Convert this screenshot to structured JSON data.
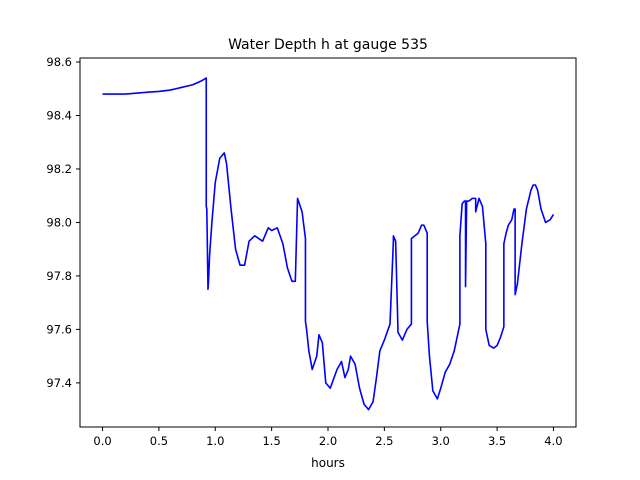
{
  "chart_data": {
    "type": "line",
    "title": "Water Depth h at gauge 535",
    "xlabel": "hours",
    "ylabel": "",
    "xlim": [
      -0.2,
      4.2
    ],
    "ylim": [
      97.235,
      98.615
    ],
    "xticks": [
      0.0,
      0.5,
      1.0,
      1.5,
      2.0,
      2.5,
      3.0,
      3.5,
      4.0
    ],
    "xtick_labels": [
      "0.0",
      "0.5",
      "1.0",
      "1.5",
      "2.0",
      "2.5",
      "3.0",
      "3.5",
      "4.0"
    ],
    "yticks": [
      97.4,
      97.6,
      97.8,
      98.0,
      98.2,
      98.4,
      98.6
    ],
    "ytick_labels": [
      "97.4",
      "97.6",
      "97.8",
      "98.0",
      "98.2",
      "98.4",
      "98.6"
    ],
    "grid": false,
    "series": [
      {
        "color": "#0000ff",
        "x": [
          0.0,
          0.2,
          0.4,
          0.5,
          0.6,
          0.65,
          0.7,
          0.8,
          0.88,
          0.92,
          0.92,
          0.925,
          0.935,
          0.935,
          0.94,
          0.95,
          0.97,
          1.0,
          1.04,
          1.08,
          1.1,
          1.14,
          1.18,
          1.22,
          1.26,
          1.3,
          1.35,
          1.42,
          1.47,
          1.5,
          1.55,
          1.6,
          1.64,
          1.68,
          1.71,
          1.73,
          1.73,
          1.77,
          1.8,
          1.8,
          1.81,
          1.83,
          1.86,
          1.9,
          1.92,
          1.95,
          1.98,
          2.02,
          2.08,
          2.12,
          2.15,
          2.18,
          2.2,
          2.24,
          2.28,
          2.32,
          2.36,
          2.4,
          2.43,
          2.46,
          2.5,
          2.55,
          2.58,
          2.58,
          2.6,
          2.62,
          2.62,
          2.66,
          2.7,
          2.74,
          2.74,
          2.77,
          2.8,
          2.83,
          2.85,
          2.88,
          2.88,
          2.9,
          2.93,
          2.97,
          3.0,
          3.04,
          3.08,
          3.12,
          3.17,
          3.17,
          3.19,
          3.21,
          3.22,
          3.22,
          3.23,
          3.25,
          3.28,
          3.31,
          3.31,
          3.34,
          3.37,
          3.4,
          3.4,
          3.43,
          3.47,
          3.5,
          3.53,
          3.56,
          3.56,
          3.58,
          3.6,
          3.63,
          3.65,
          3.66,
          3.66,
          3.68,
          3.72,
          3.76,
          3.8,
          3.82,
          3.84,
          3.86,
          3.89,
          3.93,
          3.97,
          4.0
        ],
        "values": [
          98.48,
          98.48,
          98.487,
          98.49,
          98.495,
          98.5,
          98.505,
          98.515,
          98.53,
          98.54,
          98.06,
          98.05,
          97.76,
          97.75,
          97.78,
          97.88,
          98.0,
          98.15,
          98.24,
          98.26,
          98.22,
          98.05,
          97.9,
          97.84,
          97.84,
          97.93,
          97.95,
          97.93,
          97.98,
          97.97,
          97.98,
          97.92,
          97.83,
          97.78,
          97.78,
          98.09,
          98.09,
          98.04,
          97.94,
          97.63,
          97.6,
          97.52,
          97.45,
          97.5,
          97.58,
          97.55,
          97.4,
          97.38,
          97.45,
          97.48,
          97.42,
          97.45,
          97.5,
          97.47,
          97.38,
          97.32,
          97.3,
          97.33,
          97.42,
          97.52,
          97.56,
          97.62,
          97.93,
          97.95,
          97.93,
          97.61,
          97.59,
          97.56,
          97.6,
          97.62,
          97.94,
          97.95,
          97.96,
          97.99,
          97.99,
          97.96,
          97.63,
          97.5,
          97.37,
          97.34,
          97.38,
          97.44,
          97.47,
          97.52,
          97.62,
          97.95,
          98.07,
          98.08,
          98.08,
          97.76,
          98.08,
          98.08,
          98.09,
          98.09,
          98.04,
          98.09,
          98.06,
          97.92,
          97.6,
          97.54,
          97.53,
          97.54,
          97.57,
          97.61,
          97.92,
          97.96,
          97.99,
          98.01,
          98.05,
          98.05,
          97.73,
          97.77,
          97.92,
          98.05,
          98.12,
          98.14,
          98.14,
          98.12,
          98.05,
          98.0,
          98.01,
          98.03
        ]
      }
    ]
  }
}
